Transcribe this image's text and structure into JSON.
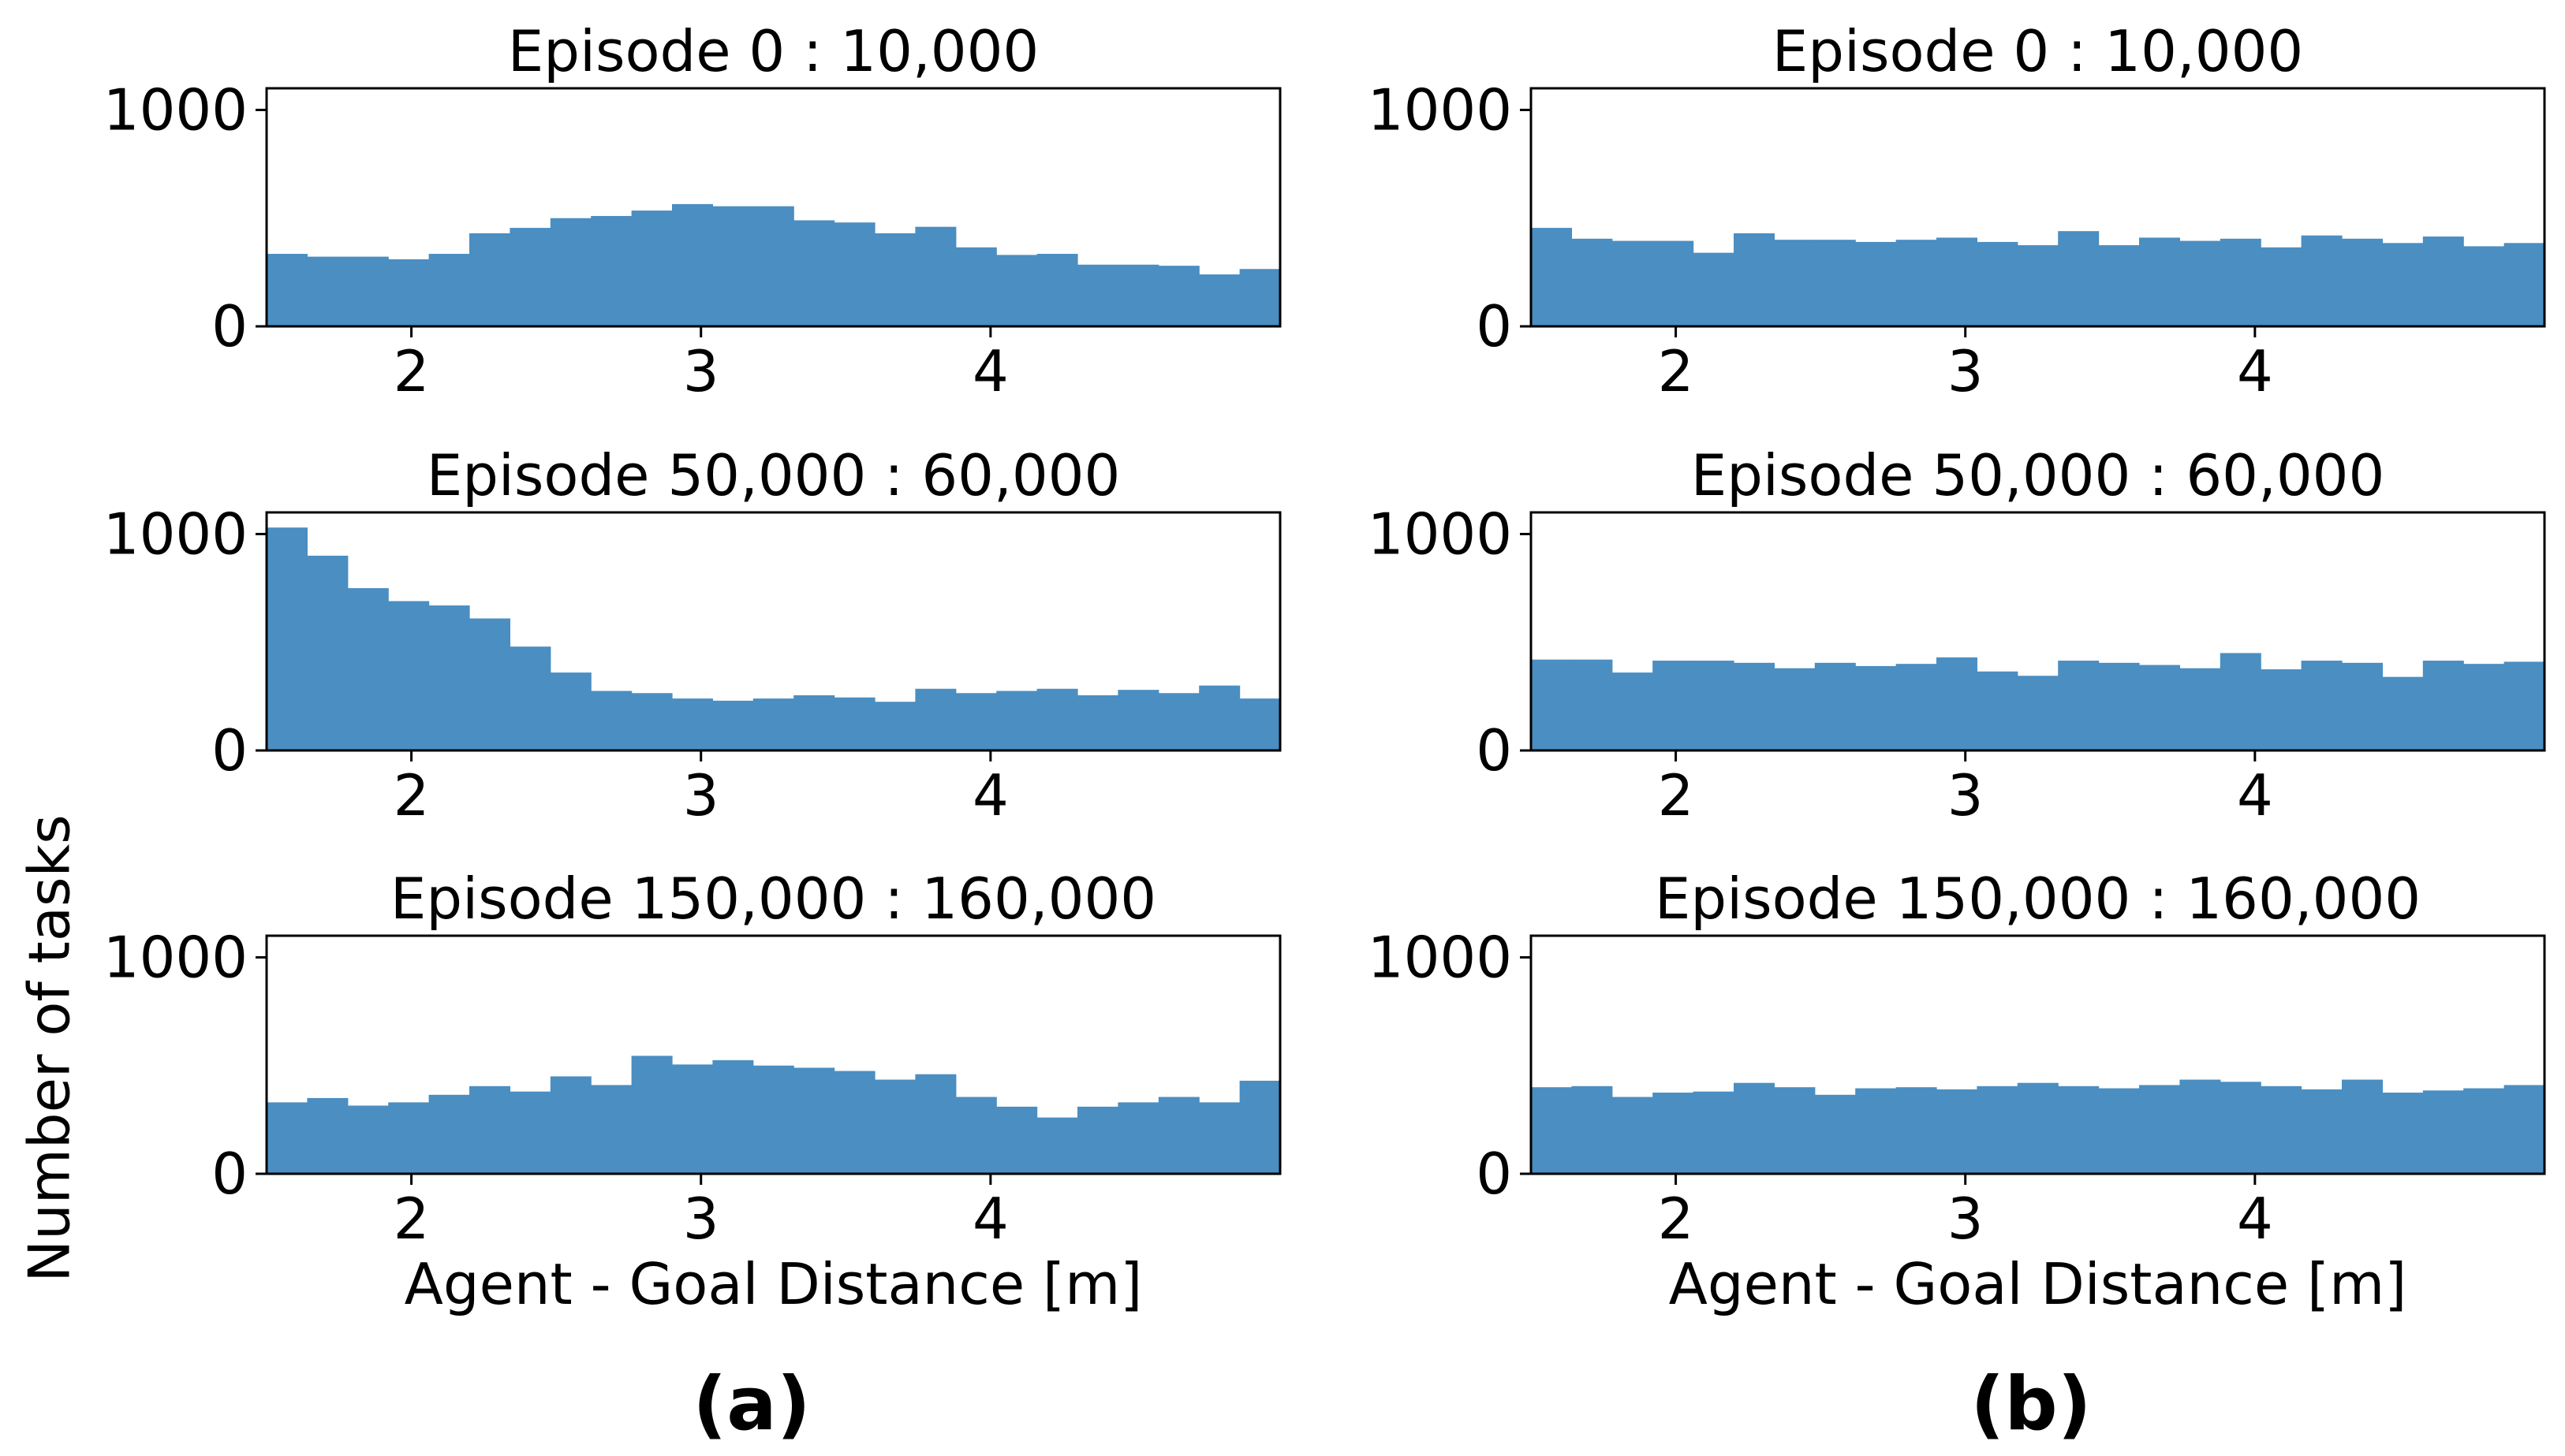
{
  "figure": {
    "ylabel": "Number of tasks",
    "bar_color": "#4a8ec2",
    "columns": [
      {
        "label": "(a)"
      },
      {
        "label": "(b)"
      }
    ]
  },
  "chart_data": [
    {
      "type": "bar",
      "panel": "(a)",
      "title": "Episode  0 : 10,000",
      "xlabel": "",
      "ylabel": "",
      "xlim": [
        1.5,
        5.0
      ],
      "ylim": [
        0,
        1100
      ],
      "xticks": [
        2,
        3,
        4
      ],
      "yticks": [
        0,
        1000
      ],
      "bin_start": 1.5,
      "bin_width": 0.14,
      "values": [
        335,
        322,
        322,
        310,
        335,
        430,
        455,
        500,
        510,
        535,
        565,
        555,
        555,
        490,
        480,
        430,
        460,
        365,
        330,
        335,
        285,
        285,
        280,
        240,
        265
      ]
    },
    {
      "type": "bar",
      "panel": "(a)",
      "title": "Episode  50,000 : 60,000",
      "xlabel": "",
      "ylabel": "",
      "xlim": [
        1.5,
        5.0
      ],
      "ylim": [
        0,
        1100
      ],
      "xticks": [
        2,
        3,
        4
      ],
      "yticks": [
        0,
        1000
      ],
      "bin_start": 1.5,
      "bin_width": 0.14,
      "values": [
        1030,
        900,
        750,
        690,
        670,
        610,
        480,
        360,
        275,
        265,
        240,
        230,
        240,
        255,
        245,
        225,
        285,
        265,
        275,
        285,
        255,
        280,
        265,
        300,
        240
      ]
    },
    {
      "type": "bar",
      "panel": "(a)",
      "title": "Episode  150,000 : 160,000",
      "xlabel": "Agent - Goal Distance [m]",
      "ylabel": "",
      "xlim": [
        1.5,
        5.0
      ],
      "ylim": [
        0,
        1100
      ],
      "xticks": [
        2,
        3,
        4
      ],
      "yticks": [
        0,
        1000
      ],
      "bin_start": 1.5,
      "bin_width": 0.14,
      "values": [
        330,
        350,
        315,
        330,
        365,
        405,
        380,
        450,
        410,
        545,
        505,
        525,
        500,
        490,
        475,
        435,
        460,
        355,
        310,
        260,
        310,
        330,
        355,
        330,
        430
      ]
    },
    {
      "type": "bar",
      "panel": "(b)",
      "title": "Episode  0 : 10,000",
      "xlabel": "",
      "ylabel": "",
      "xlim": [
        1.5,
        5.0
      ],
      "ylim": [
        0,
        1100
      ],
      "xticks": [
        2,
        3,
        4
      ],
      "yticks": [
        0,
        1000
      ],
      "bin_start": 1.5,
      "bin_width": 0.14,
      "values": [
        455,
        405,
        395,
        395,
        340,
        430,
        400,
        400,
        390,
        400,
        410,
        390,
        375,
        440,
        375,
        410,
        395,
        405,
        365,
        420,
        405,
        385,
        415,
        370,
        385
      ]
    },
    {
      "type": "bar",
      "panel": "(b)",
      "title": "Episode  50,000 : 60,000",
      "xlabel": "",
      "ylabel": "",
      "xlim": [
        1.5,
        5.0
      ],
      "ylim": [
        0,
        1100
      ],
      "xticks": [
        2,
        3,
        4
      ],
      "yticks": [
        0,
        1000
      ],
      "bin_start": 1.5,
      "bin_width": 0.14,
      "values": [
        420,
        420,
        360,
        415,
        415,
        405,
        380,
        405,
        390,
        400,
        430,
        365,
        345,
        415,
        405,
        395,
        380,
        450,
        375,
        415,
        405,
        340,
        415,
        400,
        410
      ]
    },
    {
      "type": "bar",
      "panel": "(b)",
      "title": "Episode  150,000 : 160,000",
      "xlabel": "Agent - Goal Distance [m]",
      "ylabel": "",
      "xlim": [
        1.5,
        5.0
      ],
      "ylim": [
        0,
        1100
      ],
      "xticks": [
        2,
        3,
        4
      ],
      "yticks": [
        0,
        1000
      ],
      "bin_start": 1.5,
      "bin_width": 0.14,
      "values": [
        400,
        405,
        355,
        375,
        380,
        420,
        400,
        365,
        395,
        400,
        390,
        405,
        420,
        405,
        395,
        410,
        435,
        425,
        405,
        390,
        435,
        375,
        385,
        395,
        410
      ]
    }
  ]
}
